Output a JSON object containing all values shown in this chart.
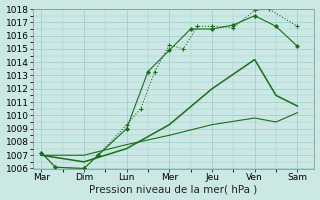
{
  "background_color": "#cce8e4",
  "grid_color": "#99cccc",
  "line_color": "#1a6e1a",
  "xlabels": [
    "Mar",
    "Dim",
    "Lun",
    "Mer",
    "Jeu",
    "Ven",
    "Sam"
  ],
  "xlabel": "Pression niveau de la mer( hPa )",
  "ylim": [
    1006,
    1018
  ],
  "yticks": [
    1006,
    1007,
    1008,
    1009,
    1010,
    1011,
    1012,
    1013,
    1014,
    1015,
    1016,
    1017,
    1018
  ],
  "line1_x": [
    0,
    0.33,
    1,
    1.33,
    2,
    2.33,
    2.66,
    3.0,
    3.33,
    3.66,
    4.0,
    4.5,
    5.0,
    5.33,
    6
  ],
  "line1_y": [
    1007.2,
    1006.1,
    1006.0,
    1007.0,
    1009.3,
    1010.5,
    1013.3,
    1015.3,
    1015.0,
    1016.7,
    1016.7,
    1016.6,
    1017.9,
    1018.0,
    1016.7
  ],
  "line2_x": [
    0,
    0.33,
    1,
    1.33,
    2,
    2.5,
    3.0,
    3.5,
    4.0,
    4.5,
    5.0,
    5.5,
    6
  ],
  "line2_y": [
    1007.2,
    1006.1,
    1006.0,
    1007.0,
    1009.0,
    1013.3,
    1014.9,
    1016.5,
    1016.5,
    1016.8,
    1017.5,
    1016.7,
    1015.2
  ],
  "line3_x": [
    0,
    1,
    2,
    3,
    4,
    5,
    5.5,
    6
  ],
  "line3_y": [
    1007.0,
    1006.5,
    1007.5,
    1009.3,
    1012.0,
    1014.2,
    1011.5,
    1010.7
  ],
  "line4_x": [
    0,
    1,
    2,
    3,
    4,
    5,
    5.5,
    6
  ],
  "line4_y": [
    1007.0,
    1007.0,
    1007.8,
    1008.5,
    1009.3,
    1009.8,
    1009.5,
    1010.2
  ],
  "xtick_positions": [
    0,
    1,
    2,
    3,
    4,
    5,
    6
  ],
  "tick_fontsize": 6.5,
  "label_fontsize": 7.5
}
